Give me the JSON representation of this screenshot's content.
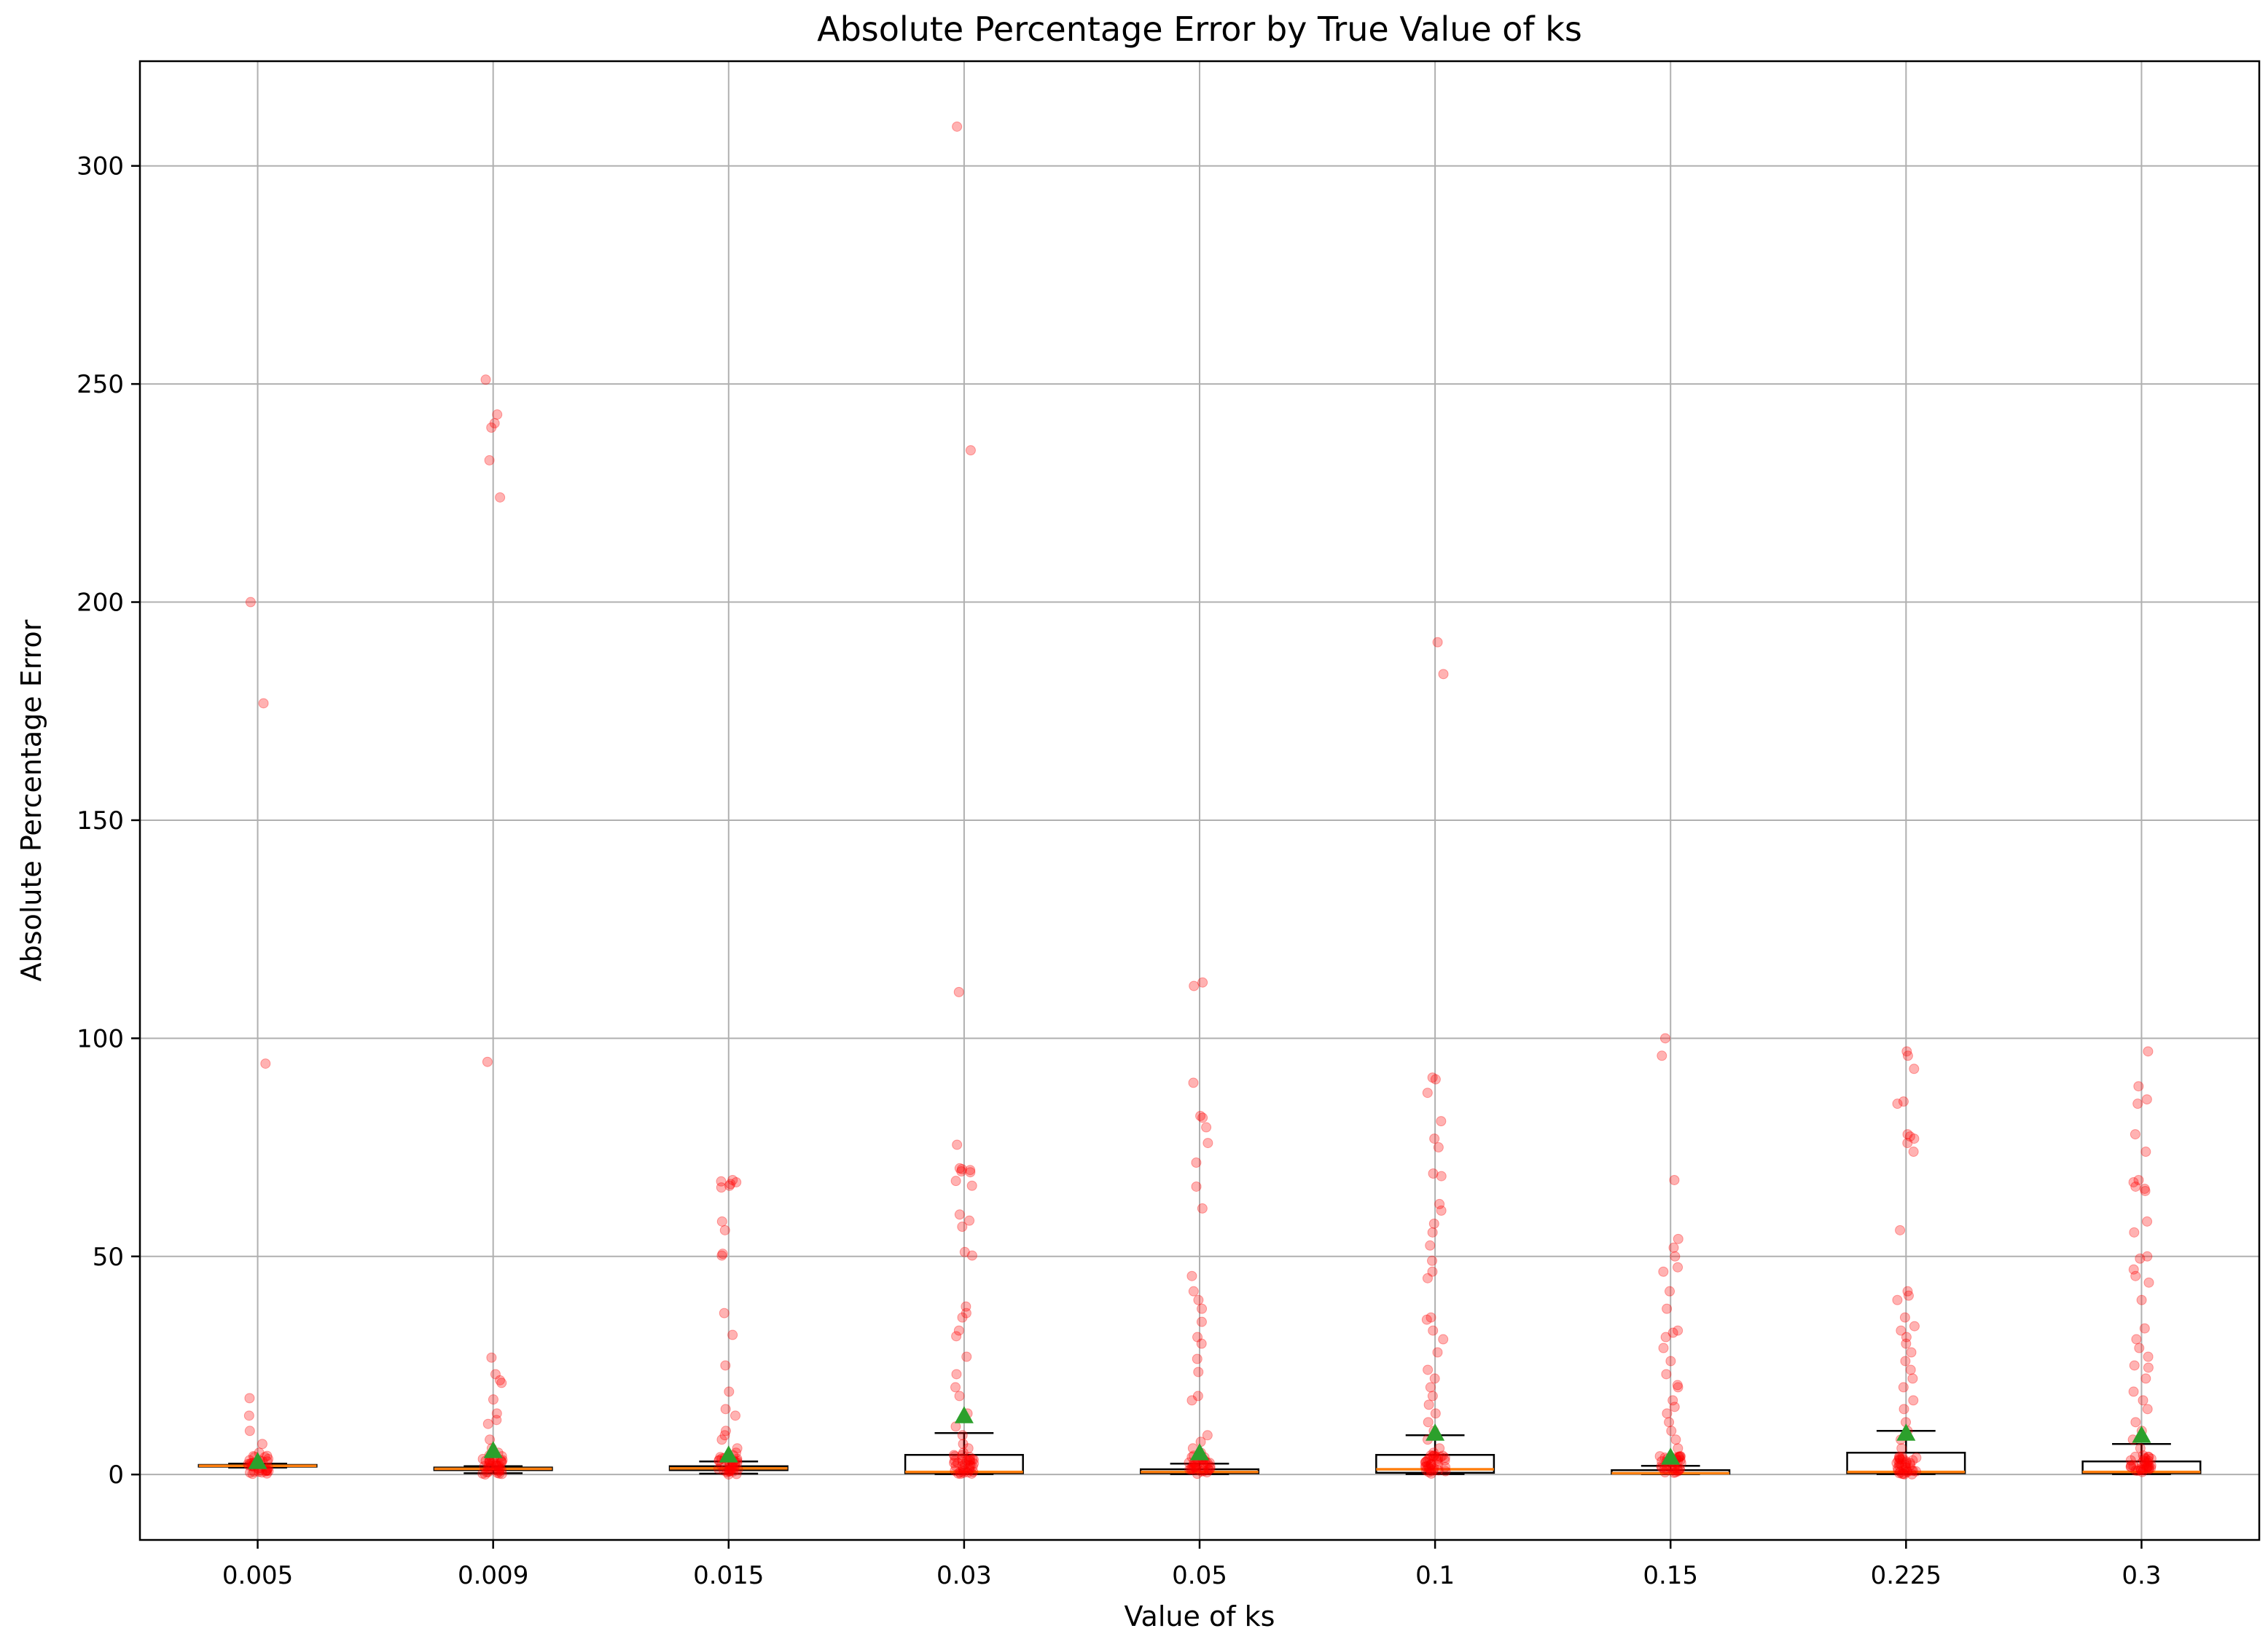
{
  "chart_data": {
    "type": "box",
    "title": "Absolute Percentage Error by True Value of ks",
    "xlabel": "Value of ks",
    "ylabel": "Absolute Percentage Error",
    "categories": [
      "0.005",
      "0.009",
      "0.015",
      "0.03",
      "0.05",
      "0.1",
      "0.15",
      "0.225",
      "0.3"
    ],
    "ylim": [
      -15,
      324
    ],
    "yticks": [
      0,
      50,
      100,
      150,
      200,
      250,
      300
    ],
    "grid": true,
    "legend": "none",
    "colors": {
      "box_edge": "#000000",
      "median": "#ff7f0e",
      "mean_marker": "#2ca02c",
      "points": "#ff0000",
      "grid": "#b0b0b0"
    },
    "boxes": [
      {
        "category": "0.005",
        "whisker_low": 1.6,
        "q1": 1.8,
        "median": 2.0,
        "q3": 2.2,
        "whisker_high": 2.5,
        "mean": 3.0
      },
      {
        "category": "0.009",
        "whisker_low": 0.3,
        "q1": 1.0,
        "median": 1.3,
        "q3": 1.6,
        "whisker_high": 1.9,
        "mean": 5.5
      },
      {
        "category": "0.015",
        "whisker_low": 0.2,
        "q1": 1.0,
        "median": 1.4,
        "q3": 1.9,
        "whisker_high": 3.0,
        "mean": 4.5
      },
      {
        "category": "0.03",
        "whisker_low": 0.1,
        "q1": 0.3,
        "median": 0.6,
        "q3": 4.5,
        "whisker_high": 9.5,
        "mean": 13.5
      },
      {
        "category": "0.05",
        "whisker_low": 0.1,
        "q1": 0.3,
        "median": 0.6,
        "q3": 1.2,
        "whisker_high": 2.5,
        "mean": 5.0
      },
      {
        "category": "0.1",
        "whisker_low": 0.1,
        "q1": 0.4,
        "median": 1.2,
        "q3": 4.5,
        "whisker_high": 9.0,
        "mean": 9.5
      },
      {
        "category": "0.15",
        "whisker_low": 0.1,
        "q1": 0.2,
        "median": 0.3,
        "q3": 1.0,
        "whisker_high": 2.0,
        "mean": 4.0
      },
      {
        "category": "0.225",
        "whisker_low": 0.1,
        "q1": 0.3,
        "median": 0.6,
        "q3": 5.0,
        "whisker_high": 10.0,
        "mean": 9.5
      },
      {
        "category": "0.3",
        "whisker_low": 0.1,
        "q1": 0.3,
        "median": 0.6,
        "q3": 3.0,
        "whisker_high": 7.0,
        "mean": 9.0
      }
    ],
    "points": [
      {
        "category": "0.005",
        "values": [
          200.0,
          176.8,
          94.2,
          17.5,
          13.5,
          10.0,
          7.0,
          5.0,
          4.0,
          3.0,
          2.5,
          2.0,
          1.8
        ]
      },
      {
        "category": "0.009",
        "values": [
          251.0,
          243.0,
          241.0,
          240.0,
          232.5,
          224.0,
          94.6,
          26.8,
          23.0,
          21.6,
          21.0,
          17.2,
          14.0,
          12.5,
          11.6,
          8.0,
          6.0,
          5.0,
          4.0,
          3.0,
          2.0,
          1.5,
          1.0,
          0.5
        ]
      },
      {
        "category": "0.015",
        "values": [
          67.5,
          67.2,
          67.0,
          66.6,
          66.2,
          65.8,
          58.0,
          56.0,
          50.6,
          50.2,
          37.0,
          32.0,
          25.0,
          19.0,
          15.0,
          13.5,
          10.0,
          9.0,
          8.0,
          6.0,
          5.0,
          4.0,
          3.0,
          2.0,
          1.0,
          0.5
        ]
      },
      {
        "category": "0.03",
        "values": [
          309.0,
          234.8,
          110.6,
          75.6,
          70.2,
          70.0,
          69.8,
          69.5,
          69.3,
          67.3,
          66.2,
          59.6,
          58.2,
          56.8,
          51.0,
          50.2,
          38.5,
          37.0,
          36.0,
          33.0,
          31.7,
          27.0,
          23.0,
          20.0,
          18.0,
          14.0,
          11.0,
          9.0,
          7.0,
          6.0,
          5.0,
          4.0,
          3.0,
          2.0,
          1.0,
          0.5
        ]
      },
      {
        "category": "0.05",
        "values": [
          112.8,
          112.0,
          89.8,
          82.2,
          81.8,
          79.6,
          76.0,
          71.5,
          66.0,
          61.0,
          45.5,
          42.0,
          40.0,
          38.0,
          35.0,
          31.5,
          30.0,
          26.5,
          23.5,
          18.0,
          17.0,
          9.0,
          7.5,
          6.0,
          5.0,
          4.0,
          3.0,
          2.0,
          1.0,
          0.5
        ]
      },
      {
        "category": "0.1",
        "values": [
          190.8,
          183.5,
          91.0,
          90.6,
          87.5,
          81.0,
          77.0,
          75.0,
          69.0,
          68.4,
          62.0,
          60.5,
          57.5,
          55.5,
          52.5,
          49.0,
          46.5,
          45.0,
          36.0,
          35.5,
          33.0,
          31.0,
          28.0,
          24.0,
          22.0,
          20.0,
          18.0,
          16.0,
          14.0,
          12.0,
          10.0,
          8.0,
          6.0,
          5.0,
          4.0,
          3.0,
          2.0,
          1.0
        ]
      },
      {
        "category": "0.15",
        "values": [
          100.0,
          96.0,
          67.5,
          54.0,
          52.0,
          50.0,
          47.5,
          46.5,
          42.0,
          38.0,
          33.0,
          32.5,
          31.5,
          29.0,
          26.0,
          23.0,
          20.5,
          20.0,
          17.0,
          15.5,
          14.0,
          12.0,
          10.0,
          8.0,
          6.0,
          4.0,
          3.0,
          2.0,
          1.0,
          0.5
        ]
      },
      {
        "category": "0.225",
        "values": [
          97.0,
          96.0,
          93.0,
          85.5,
          85.0,
          78.0,
          77.5,
          77.0,
          76.0,
          74.0,
          56.0,
          42.0,
          41.0,
          40.0,
          36.0,
          34.0,
          33.0,
          31.5,
          30.0,
          28.0,
          26.0,
          24.0,
          22.0,
          20.0,
          17.0,
          15.0,
          12.0,
          10.0,
          8.0,
          6.0,
          4.0,
          3.0,
          2.0,
          1.0
        ]
      },
      {
        "category": "0.3",
        "values": [
          97.0,
          89.0,
          86.0,
          85.0,
          78.0,
          74.0,
          67.5,
          67.0,
          66.0,
          65.5,
          65.0,
          58.0,
          55.5,
          50.0,
          49.5,
          47.0,
          45.5,
          44.0,
          40.0,
          33.5,
          31.0,
          29.0,
          27.0,
          25.0,
          24.5,
          22.0,
          19.0,
          17.0,
          15.0,
          12.0,
          10.0,
          8.0,
          6.0,
          4.0,
          3.0,
          2.0,
          1.0
        ]
      }
    ]
  }
}
